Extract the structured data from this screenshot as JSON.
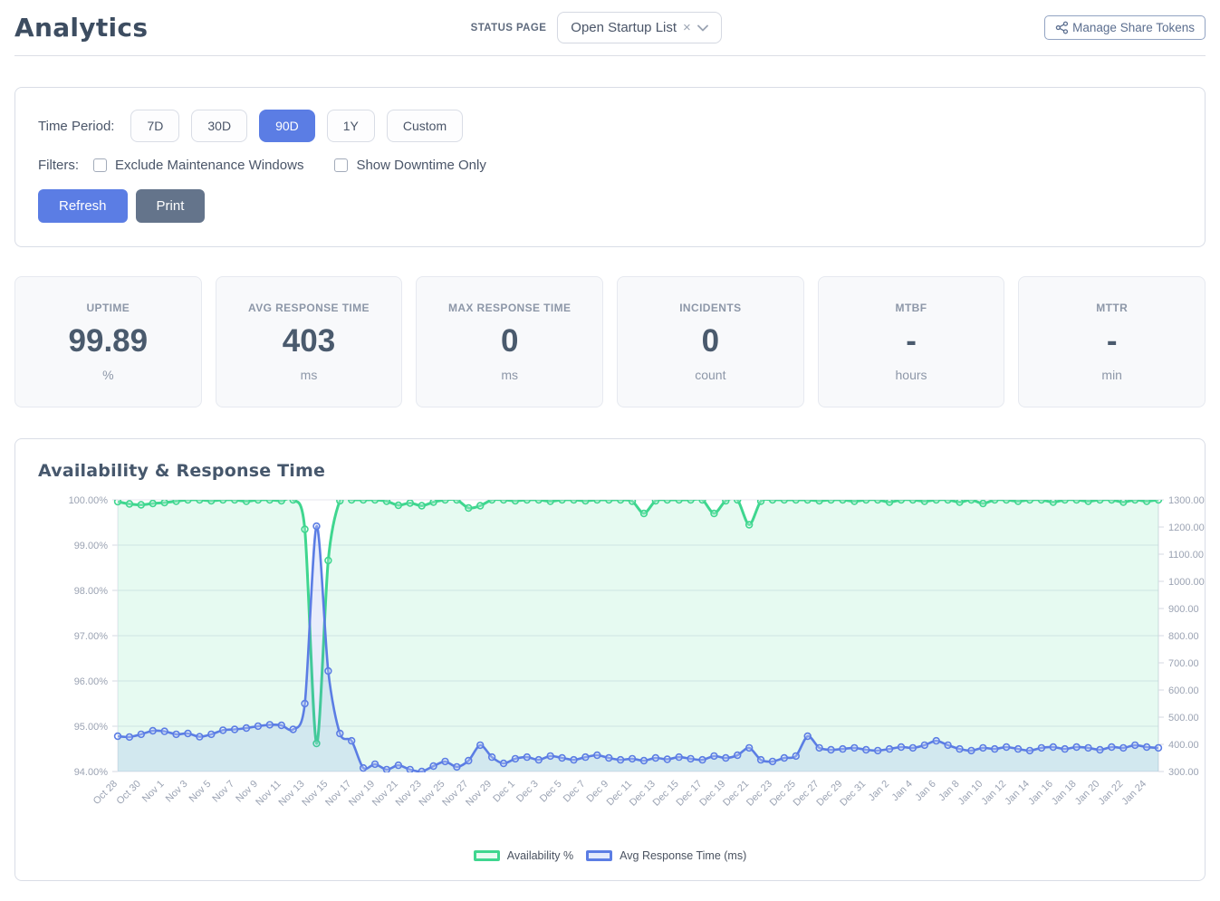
{
  "header": {
    "title": "Analytics",
    "status_page_label": "STATUS PAGE",
    "status_page_value": "Open Startup List",
    "clear_icon": "×",
    "manage_tokens_label": "Manage Share Tokens"
  },
  "filters": {
    "time_period_label": "Time Period:",
    "periods": [
      {
        "label": "7D",
        "selected": false
      },
      {
        "label": "30D",
        "selected": false
      },
      {
        "label": "90D",
        "selected": true
      },
      {
        "label": "1Y",
        "selected": false
      },
      {
        "label": "Custom",
        "selected": false
      }
    ],
    "filters_label": "Filters:",
    "checkboxes": [
      {
        "label": "Exclude Maintenance Windows",
        "checked": false
      },
      {
        "label": "Show Downtime Only",
        "checked": false
      }
    ],
    "refresh_label": "Refresh",
    "print_label": "Print"
  },
  "stats": [
    {
      "label": "UPTIME",
      "value": "99.89",
      "unit": "%"
    },
    {
      "label": "AVG RESPONSE TIME",
      "value": "403",
      "unit": "ms"
    },
    {
      "label": "MAX RESPONSE TIME",
      "value": "0",
      "unit": "ms"
    },
    {
      "label": "INCIDENTS",
      "value": "0",
      "unit": "count"
    },
    {
      "label": "MTBF",
      "value": "-",
      "unit": "hours"
    },
    {
      "label": "MTTR",
      "value": "-",
      "unit": "min"
    }
  ],
  "chart": {
    "title": "Availability & Response Time"
  },
  "colors": {
    "accent_blue": "#5b7de4",
    "slate": "#64748b",
    "green_line": "#3fd68f",
    "blue_line": "#5b7de4",
    "grid": "#e4e6ee",
    "axis_text": "#9ba3b3"
  },
  "chart_data": {
    "type": "line",
    "title": "Availability & Response Time",
    "legend_position": "bottom",
    "x_label_every": 2,
    "left_axis": {
      "min": 94,
      "max": 100,
      "tick_labels": [
        "100.00%",
        "99.00%",
        "98.00%",
        "97.00%",
        "96.00%",
        "95.00%",
        "94.00%"
      ]
    },
    "right_axis": {
      "min": 300,
      "max": 1300,
      "tick_labels": [
        "1300.00",
        "1200.00",
        "1100.00",
        "1000.00",
        "900.00",
        "800.00",
        "700.00",
        "600.00",
        "500.00",
        "400.00",
        "300.00"
      ]
    },
    "x": [
      "Oct 28",
      "Oct 29",
      "Oct 30",
      "Oct 31",
      "Nov 1",
      "Nov 2",
      "Nov 3",
      "Nov 4",
      "Nov 5",
      "Nov 6",
      "Nov 7",
      "Nov 8",
      "Nov 9",
      "Nov 10",
      "Nov 11",
      "Nov 12",
      "Nov 13",
      "Nov 14",
      "Nov 15",
      "Nov 16",
      "Nov 17",
      "Nov 18",
      "Nov 19",
      "Nov 20",
      "Nov 21",
      "Nov 22",
      "Nov 23",
      "Nov 24",
      "Nov 25",
      "Nov 26",
      "Nov 27",
      "Nov 28",
      "Nov 29",
      "Nov 30",
      "Dec 1",
      "Dec 2",
      "Dec 3",
      "Dec 4",
      "Dec 5",
      "Dec 6",
      "Dec 7",
      "Dec 8",
      "Dec 9",
      "Dec 10",
      "Dec 11",
      "Dec 12",
      "Dec 13",
      "Dec 14",
      "Dec 15",
      "Dec 16",
      "Dec 17",
      "Dec 18",
      "Dec 19",
      "Dec 20",
      "Dec 21",
      "Dec 22",
      "Dec 23",
      "Dec 24",
      "Dec 25",
      "Dec 26",
      "Dec 27",
      "Dec 28",
      "Dec 29",
      "Dec 30",
      "Dec 31",
      "Jan 1",
      "Jan 2",
      "Jan 3",
      "Jan 4",
      "Jan 5",
      "Jan 6",
      "Jan 7",
      "Jan 8",
      "Jan 9",
      "Jan 10",
      "Jan 11",
      "Jan 12",
      "Jan 13",
      "Jan 14",
      "Jan 15",
      "Jan 16",
      "Jan 17",
      "Jan 18",
      "Jan 19",
      "Jan 20",
      "Jan 21",
      "Jan 22",
      "Jan 23",
      "Jan 24",
      "Jan 25"
    ],
    "series": [
      {
        "name": "Availability %",
        "axis": "left",
        "color": "#3fd68f",
        "fill": "rgba(63,214,143,0.13)",
        "values": [
          99.96,
          99.91,
          99.89,
          99.92,
          99.94,
          99.97,
          100,
          100,
          99.98,
          100,
          100,
          99.97,
          100,
          100,
          99.98,
          100,
          99.35,
          94.62,
          98.66,
          99.98,
          100,
          100,
          100,
          99.97,
          99.88,
          99.93,
          99.87,
          99.95,
          100,
          100,
          99.82,
          99.87,
          100,
          100,
          99.98,
          100,
          100,
          99.97,
          100,
          100,
          99.98,
          100,
          100,
          100,
          99.97,
          99.7,
          99.98,
          100,
          100,
          100,
          100,
          99.7,
          99.98,
          100,
          99.45,
          99.97,
          100,
          100,
          100,
          100,
          99.98,
          100,
          100,
          99.97,
          100,
          100,
          99.95,
          100,
          100,
          99.97,
          100,
          100,
          99.95,
          100,
          99.92,
          100,
          100,
          99.97,
          100,
          100,
          99.95,
          100,
          100,
          99.97,
          100,
          100,
          99.95,
          100,
          99.97,
          100
        ]
      },
      {
        "name": "Avg Response Time (ms)",
        "axis": "right",
        "color": "#5b7de4",
        "fill": "rgba(91,125,228,0.14)",
        "values": [
          430,
          427,
          437,
          450,
          448,
          437,
          440,
          428,
          437,
          452,
          455,
          460,
          467,
          472,
          470,
          455,
          550,
          1203,
          670,
          440,
          413,
          313,
          327,
          307,
          323,
          307,
          300,
          320,
          337,
          317,
          340,
          397,
          353,
          330,
          347,
          353,
          343,
          357,
          350,
          343,
          353,
          360,
          350,
          343,
          347,
          340,
          350,
          345,
          353,
          347,
          343,
          357,
          350,
          360,
          387,
          343,
          337,
          350,
          357,
          430,
          387,
          380,
          383,
          387,
          380,
          377,
          383,
          390,
          387,
          397,
          413,
          397,
          383,
          377,
          387,
          383,
          390,
          383,
          377,
          387,
          390,
          383,
          390,
          387,
          380,
          390,
          387,
          397,
          390,
          387
        ]
      }
    ]
  }
}
